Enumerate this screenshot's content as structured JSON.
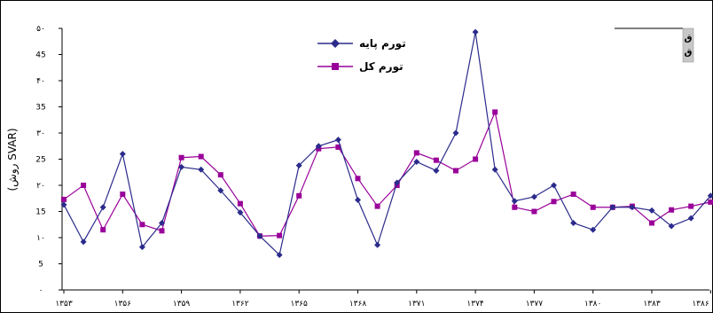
{
  "chart_data": {
    "type": "line",
    "ylabel": "(روش SVAR)",
    "ylim": [
      0,
      50
    ],
    "y_ticks": [
      "۰",
      "5",
      "۱۰",
      "15",
      "۲۰",
      "25",
      "۳۰",
      "35",
      "۴۰",
      "45",
      "۵۰"
    ],
    "x_ticks": [
      "۱۳۵۳",
      "۱۳۵۶",
      "۱۳۵۹",
      "۱۳۶۲",
      "۱۳۶۵",
      "۱۳۶۸",
      "۱۳۷۱",
      "۱۳۷۴",
      "۱۳۷۷",
      "۱۳۸۰",
      "۱۳۸۳",
      "۱۳۸۶"
    ],
    "x": [
      1353,
      1354,
      1355,
      1356,
      1357,
      1358,
      1359,
      1360,
      1361,
      1362,
      1363,
      1364,
      1365,
      1366,
      1367,
      1368,
      1369,
      1370,
      1371,
      1372,
      1373,
      1374,
      1375,
      1376,
      1377,
      1378,
      1379,
      1380,
      1381,
      1382,
      1383,
      1384,
      1385,
      1386
    ],
    "series": [
      {
        "name": "تورم پایه",
        "color": "#2b2b8c",
        "marker": "diamond",
        "values": [
          16.3,
          9.2,
          15.8,
          26.0,
          8.2,
          12.8,
          23.5,
          23.0,
          19.0,
          14.8,
          10.3,
          6.7,
          23.8,
          27.5,
          28.7,
          17.2,
          8.6,
          20.5,
          24.5,
          22.8,
          30.0,
          49.3,
          23.0,
          17.0,
          17.8,
          20.0,
          12.8,
          11.5,
          15.8,
          15.8,
          15.2,
          12.2,
          13.7,
          18.0
        ]
      },
      {
        "name": "تورم کل",
        "color": "#990099",
        "marker": "square",
        "values": [
          17.3,
          20.0,
          11.5,
          18.3,
          12.5,
          11.3,
          25.3,
          25.5,
          22.0,
          16.5,
          10.3,
          10.4,
          18.0,
          27.0,
          27.3,
          21.3,
          16.0,
          20.0,
          26.2,
          24.8,
          22.8,
          25.0,
          34.0,
          15.8,
          15.0,
          16.9,
          18.3,
          15.8,
          15.8,
          16.0,
          12.8,
          15.3,
          16.0,
          16.8
        ]
      }
    ],
    "grid": false,
    "legend_position": "top-center"
  },
  "corner_box": {
    "line1": "ق",
    "line2": "ق"
  }
}
